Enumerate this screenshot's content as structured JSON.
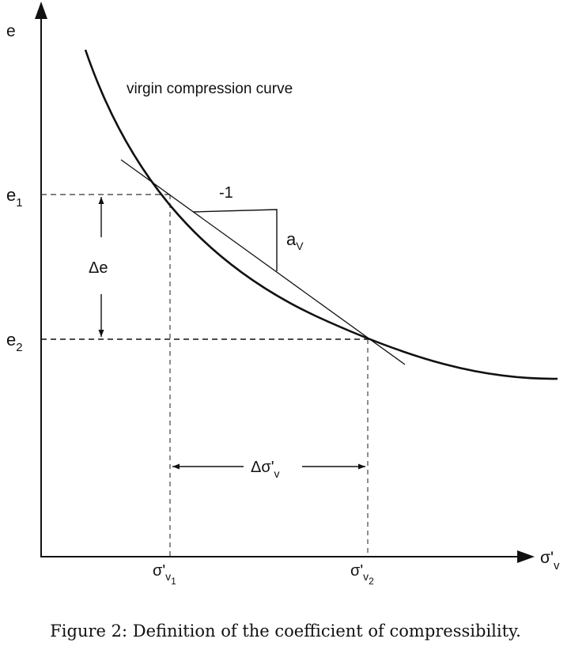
{
  "diagram": {
    "y_axis_label": "e",
    "x_axis_label": "σ'",
    "x_axis_label_sub": "v",
    "curve_label": "virgin compression curve",
    "e1": {
      "base": "e",
      "sub": "1"
    },
    "e2": {
      "base": "e",
      "sub": "2"
    },
    "sigma_v1": {
      "base": "σ'",
      "sub": "v",
      "subsub": "1"
    },
    "sigma_v2": {
      "base": "σ'",
      "sub": "v",
      "subsub": "2"
    },
    "delta_e": "Δe",
    "delta_sigma": {
      "base": "Δσ'",
      "sub": "v"
    },
    "slope_run": "-1",
    "slope_rise": {
      "base": "a",
      "sub": "V"
    }
  },
  "caption": "Figure 2: Definition of the coefficient of compressibility."
}
